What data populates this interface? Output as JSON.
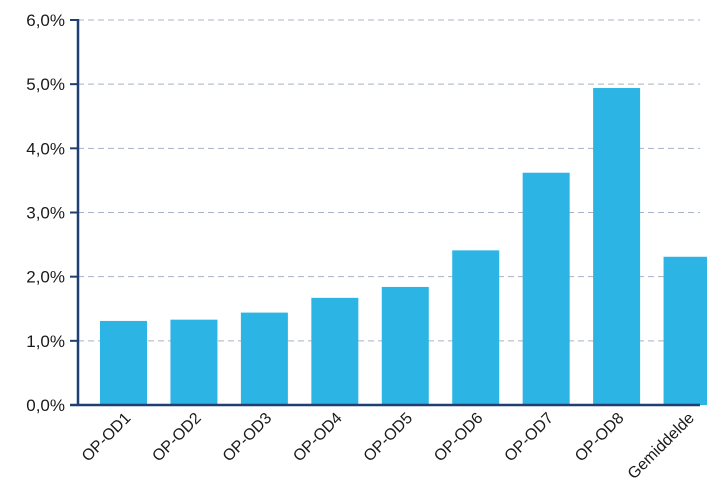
{
  "chart_data": {
    "type": "bar",
    "title": "",
    "xlabel": "",
    "ylabel": "",
    "categories": [
      "OP-OD1",
      "OP-OD2",
      "OP-OD3",
      "OP-OD4",
      "OP-OD5",
      "OP-OD6",
      "OP-OD7",
      "OP-OD8",
      "Gemiddelde"
    ],
    "values": [
      1.31,
      1.33,
      1.44,
      1.67,
      1.84,
      2.41,
      3.62,
      4.94,
      2.31
    ],
    "ylim": [
      0,
      6
    ],
    "yticks": [
      0,
      1,
      2,
      3,
      4,
      5,
      6
    ],
    "ytick_labels": [
      "0,0%",
      "1,0%",
      "2,0%",
      "3,0%",
      "4,0%",
      "5,0%",
      "6,0%"
    ],
    "grid": true,
    "legend": "none",
    "colors": {
      "bar": "#2cb5e4",
      "axis": "#1f3f73",
      "grid": "#a9b3c4"
    }
  }
}
